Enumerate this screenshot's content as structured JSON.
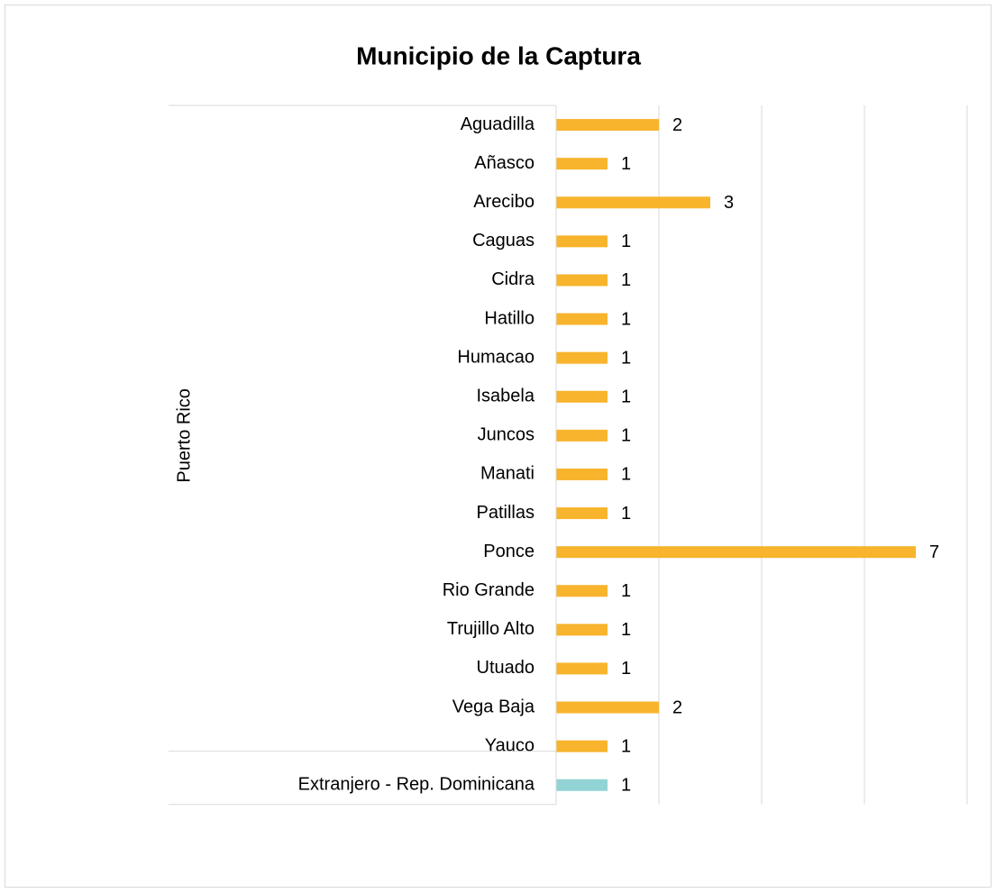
{
  "chart_data": {
    "type": "bar",
    "orientation": "horizontal",
    "title": "Municipio de la Captura",
    "groups": [
      {
        "name": "Puerto Rico",
        "color": "#f7b42c",
        "categories": [
          "Aguadilla",
          "Añasco",
          "Arecibo",
          "Caguas",
          "Cidra",
          "Hatillo",
          "Humacao",
          "Isabela",
          "Juncos",
          "Manati",
          "Patillas",
          "Ponce",
          "Rio Grande",
          "Trujillo Alto",
          "Utuado",
          "Vega Baja",
          "Yauco"
        ],
        "values": [
          2,
          1,
          3,
          1,
          1,
          1,
          1,
          1,
          1,
          1,
          1,
          7,
          1,
          1,
          1,
          2,
          1
        ]
      },
      {
        "color": "#92d3d5",
        "categories": [
          "Extranjero - Rep. Dominicana"
        ],
        "values": [
          1
        ]
      }
    ],
    "xlim": [
      0,
      8
    ],
    "xticks": [
      0,
      2,
      4,
      6,
      8
    ],
    "grid": true
  }
}
